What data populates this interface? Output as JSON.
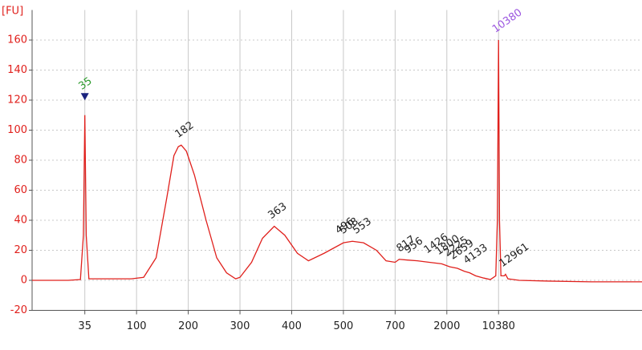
{
  "chart_data": {
    "type": "line",
    "y_label": "[FU]",
    "x": [
      12,
      25,
      32,
      34,
      35,
      36,
      38,
      60,
      90,
      110,
      130,
      150,
      165,
      175,
      182,
      195,
      210,
      230,
      250,
      270,
      290,
      300,
      320,
      340,
      363,
      385,
      410,
      430,
      460,
      500,
      530,
      570,
      620,
      660,
      700,
      760,
      900,
      1100,
      1400,
      1800,
      2200,
      2800,
      3500,
      4133,
      5000,
      6500,
      8000,
      9500,
      10000,
      10380,
      10700,
      11200,
      12500,
      12961,
      14000,
      20000,
      50000,
      200000,
      1000000
    ],
    "values": [
      0,
      0,
      0.5,
      30,
      110,
      30,
      1,
      1,
      1,
      2,
      15,
      55,
      83,
      89,
      90,
      86,
      70,
      40,
      15,
      5,
      1,
      2,
      12,
      28,
      36,
      30,
      18,
      13,
      18,
      25,
      26,
      25,
      20,
      13,
      12,
      14,
      13.5,
      13,
      12,
      11,
      9,
      8,
      6,
      5,
      3,
      1.5,
      0.5,
      3,
      40,
      160,
      40,
      3,
      3,
      4,
      1,
      0,
      -0.5,
      -1,
      -1
    ],
    "color": "#e0201c",
    "xlim": [
      12,
      1000000
    ],
    "xticks": [
      35,
      100,
      200,
      300,
      400,
      500,
      700,
      2000,
      10380
    ],
    "ylim": [
      -20,
      180
    ],
    "yticks": [
      -20,
      0,
      20,
      40,
      60,
      80,
      100,
      120,
      140,
      160
    ],
    "grid": true,
    "marker": {
      "x": 35,
      "y": 122,
      "color": "#1a237e"
    },
    "peaks": {
      "x": [
        35,
        182,
        363,
        496,
        508,
        553,
        817,
        956,
        1426,
        1800,
        2225,
        2659,
        4133,
        10380,
        12961
      ],
      "y": [
        124,
        92,
        38,
        28,
        28,
        28,
        16,
        15,
        15,
        14,
        13,
        11,
        8,
        162,
        6
      ],
      "colors": [
        "#2e9b2e",
        "#222222",
        "#222222",
        "#222222",
        "#222222",
        "#222222",
        "#222222",
        "#222222",
        "#222222",
        "#222222",
        "#222222",
        "#222222",
        "#222222",
        "#9b55e0",
        "#222222"
      ]
    }
  }
}
